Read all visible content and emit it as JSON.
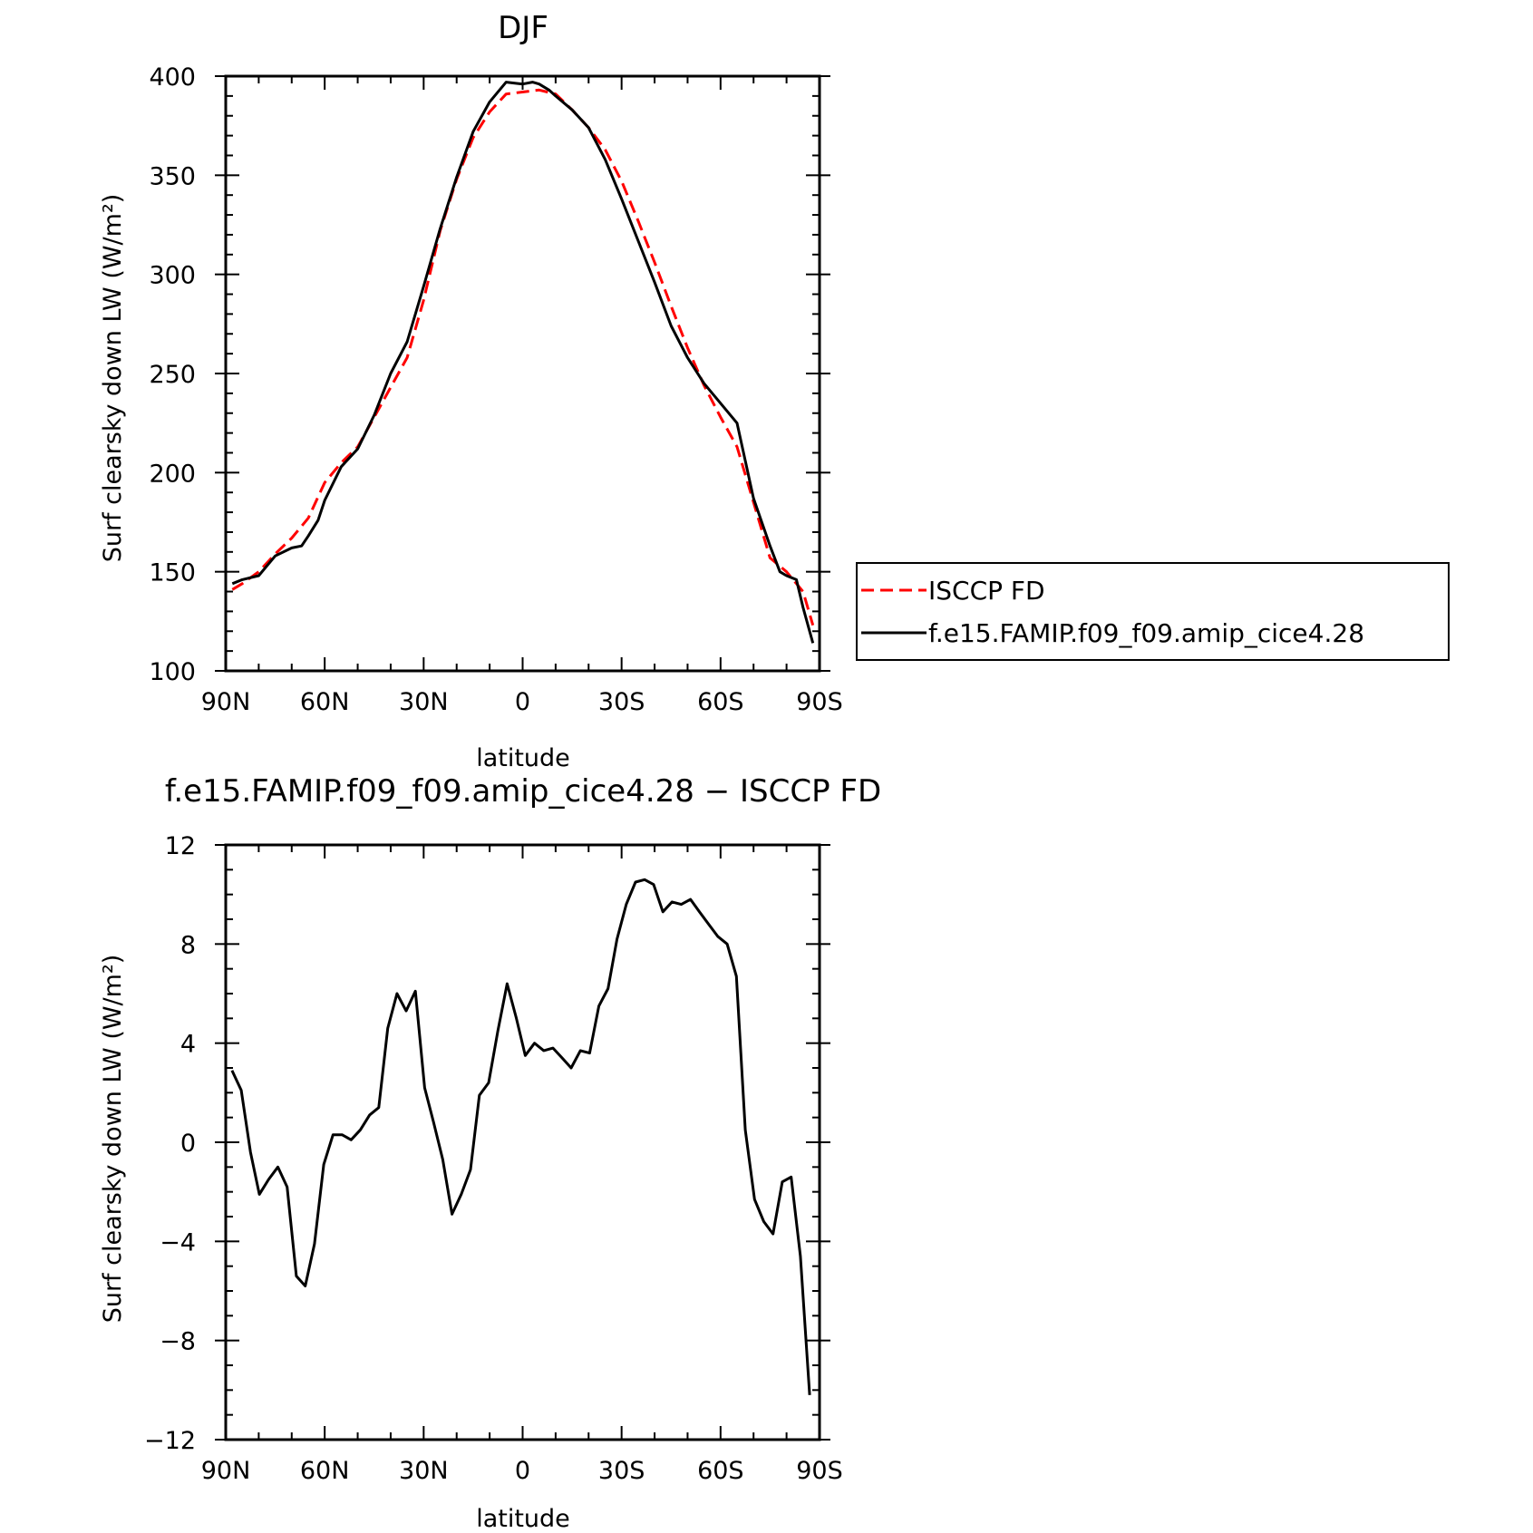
{
  "chart_data": [
    {
      "type": "line",
      "title": "DJF",
      "xlabel": "latitude",
      "ylabel": "Surf clearsky down LW (W/m²)",
      "xlim": [
        90,
        -90
      ],
      "ylim": [
        100,
        400
      ],
      "xticks": [
        90,
        60,
        30,
        0,
        -30,
        -60,
        -90
      ],
      "xtick_labels": [
        "90N",
        "60N",
        "30N",
        "0",
        "30S",
        "60S",
        "90S"
      ],
      "yticks": [
        100,
        150,
        200,
        250,
        300,
        350,
        400
      ],
      "ytick_labels": [
        "100",
        "150",
        "200",
        "250",
        "300",
        "350",
        "400"
      ],
      "legend": {
        "location": "right",
        "entries": [
          "ISCCP FD",
          "f.e15.FAMIP.f09_f09.amip_cice4.28"
        ]
      },
      "series": [
        {
          "name": "ISCCP FD",
          "color": "#ff0000",
          "dash": "dashed",
          "x": [
            88,
            85,
            80,
            75,
            70,
            65,
            60,
            55,
            50,
            45,
            40,
            35,
            30,
            25,
            20,
            15,
            10,
            5,
            0,
            -5,
            -10,
            -15,
            -20,
            -25,
            -30,
            -35,
            -40,
            -45,
            -50,
            -55,
            -60,
            -65,
            -70,
            -75,
            -80,
            -85,
            -88
          ],
          "y": [
            141,
            144,
            150,
            159,
            167,
            177,
            195,
            205,
            213,
            228,
            243,
            258,
            287,
            322,
            348,
            369,
            382,
            391,
            392,
            393,
            391,
            383,
            374,
            363,
            347,
            327,
            306,
            284,
            263,
            244,
            228,
            213,
            185,
            157,
            150,
            140,
            123
          ]
        },
        {
          "name": "f.e15.FAMIP.f09_f09.amip_cice4.28",
          "color": "#000000",
          "dash": "solid",
          "x": [
            88,
            85,
            80,
            75,
            70,
            67,
            65,
            62,
            60,
            55,
            50,
            45,
            40,
            35,
            30,
            25,
            20,
            15,
            10,
            5,
            0,
            -3,
            -5,
            -8,
            -10,
            -15,
            -20,
            -25,
            -30,
            -35,
            -40,
            -45,
            -50,
            -55,
            -60,
            -65,
            -70,
            -75,
            -78,
            -80,
            -83,
            -85,
            -88
          ],
          "y": [
            144,
            146,
            148,
            158,
            162,
            163,
            168,
            176,
            186,
            203,
            212,
            229,
            250,
            266,
            294,
            323,
            349,
            372,
            387,
            397,
            396,
            397,
            396,
            393,
            390,
            383,
            374,
            358,
            338,
            317,
            296,
            274,
            258,
            245,
            235,
            225,
            187,
            163,
            150,
            148,
            146,
            132,
            114
          ]
        }
      ]
    },
    {
      "type": "line",
      "title": "f.e15.FAMIP.f09_f09.amip_cice4.28 − ISCCP FD",
      "xlabel": "latitude",
      "ylabel": "Surf clearsky down LW (W/m²)",
      "xlim": [
        90,
        -90
      ],
      "ylim": [
        -12,
        12
      ],
      "xticks": [
        90,
        60,
        30,
        0,
        -30,
        -60,
        -90
      ],
      "xtick_labels": [
        "90N",
        "60N",
        "30N",
        "0",
        "30S",
        "60S",
        "90S"
      ],
      "yticks": [
        -12,
        -8,
        -4,
        0,
        4,
        8,
        12
      ],
      "ytick_labels": [
        "−12",
        "−8",
        "−4",
        "0",
        "4",
        "8",
        "12"
      ],
      "series": [
        {
          "color": "#000000",
          "dash": "solid",
          "x": [
            88.1,
            85.3,
            82.5,
            79.8,
            77.0,
            74.2,
            71.4,
            68.6,
            65.9,
            63.1,
            60.3,
            57.5,
            54.7,
            52.0,
            49.2,
            46.4,
            43.6,
            40.9,
            38.1,
            35.3,
            32.5,
            29.7,
            27.0,
            24.2,
            21.4,
            18.6,
            15.8,
            13.1,
            10.3,
            7.5,
            4.7,
            1.9,
            -0.8,
            -3.6,
            -6.4,
            -9.2,
            -12.0,
            -14.7,
            -17.5,
            -20.3,
            -23.1,
            -25.9,
            -28.6,
            -31.4,
            -34.2,
            -37.0,
            -39.7,
            -42.5,
            -45.3,
            -48.1,
            -50.9,
            -53.6,
            -56.4,
            -59.2,
            -62.0,
            -64.8,
            -67.5,
            -70.3,
            -73.1,
            -75.9,
            -78.7,
            -81.4,
            -84.2,
            -87.0
          ],
          "y": [
            2.9,
            2.1,
            -0.4,
            -2.1,
            -1.5,
            -1.0,
            -1.8,
            -5.4,
            -5.8,
            -4.1,
            -0.9,
            0.3,
            0.3,
            0.1,
            0.5,
            1.1,
            1.4,
            4.6,
            6.0,
            5.3,
            6.1,
            2.2,
            0.8,
            -0.7,
            -2.9,
            -2.1,
            -1.1,
            1.9,
            2.4,
            4.5,
            6.4,
            5.0,
            3.5,
            4.0,
            3.7,
            3.8,
            3.4,
            3.0,
            3.7,
            3.6,
            5.5,
            6.2,
            8.2,
            9.6,
            10.5,
            10.6,
            10.4,
            9.3,
            9.7,
            9.6,
            9.8,
            9.3,
            8.8,
            8.3,
            8.0,
            6.7,
            0.5,
            -2.3,
            -3.2,
            -3.7,
            -1.6,
            -1.4,
            -4.6,
            -10.2
          ]
        }
      ]
    }
  ]
}
